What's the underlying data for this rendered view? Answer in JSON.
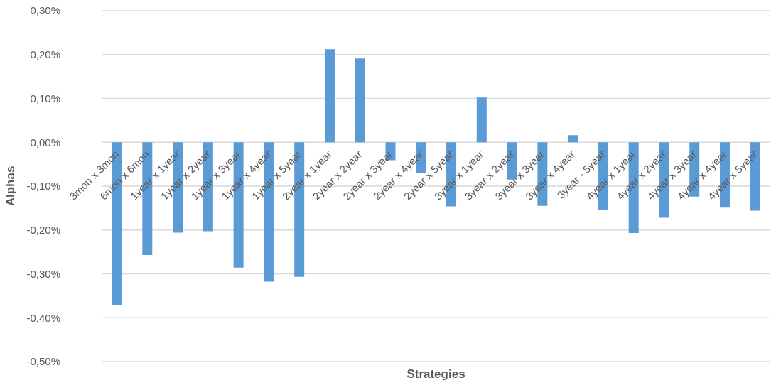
{
  "chart_data": {
    "type": "bar",
    "xlabel": "Strategies",
    "ylabel": "Alphas",
    "categories": [
      "3mon x 3mon",
      "6mon x 6mon",
      "1year x 1year",
      "1year x 2year",
      "1year x 3year",
      "1year x 4year",
      "1year x 5year",
      "2year x 1year",
      "2year x 2year",
      "2year x 3year",
      "2year x 4year",
      "2year x 5year",
      "3year x 1year",
      "3year x 2year",
      "3year x 3year",
      "3year x 4year",
      "3year - 5year",
      "4year x 1year",
      "4year x 2year",
      "4year x 3year",
      "4year x 4year",
      "4year x 5year"
    ],
    "values": [
      -0.371,
      -0.257,
      -0.206,
      -0.203,
      -0.286,
      -0.318,
      -0.307,
      0.212,
      0.191,
      -0.041,
      -0.07,
      -0.146,
      0.102,
      -0.085,
      -0.145,
      0.016,
      -0.155,
      -0.207,
      -0.172,
      -0.124,
      -0.149,
      -0.156
    ],
    "color": "#5b9bd5",
    "ylim": [
      -0.5,
      0.3
    ],
    "yticks": [
      {
        "value": -0.5,
        "label": "-0,50%"
      },
      {
        "value": -0.4,
        "label": "-0,40%"
      },
      {
        "value": -0.3,
        "label": "-0,30%"
      },
      {
        "value": -0.2,
        "label": "-0,20%"
      },
      {
        "value": -0.1,
        "label": "-0,10%"
      },
      {
        "value": 0,
        "label": "0,00%"
      },
      {
        "value": 0.1,
        "label": "0,10%"
      },
      {
        "value": 0.2,
        "label": "0,20%"
      },
      {
        "value": 0.3,
        "label": "0,30%"
      }
    ],
    "grid": "y"
  }
}
